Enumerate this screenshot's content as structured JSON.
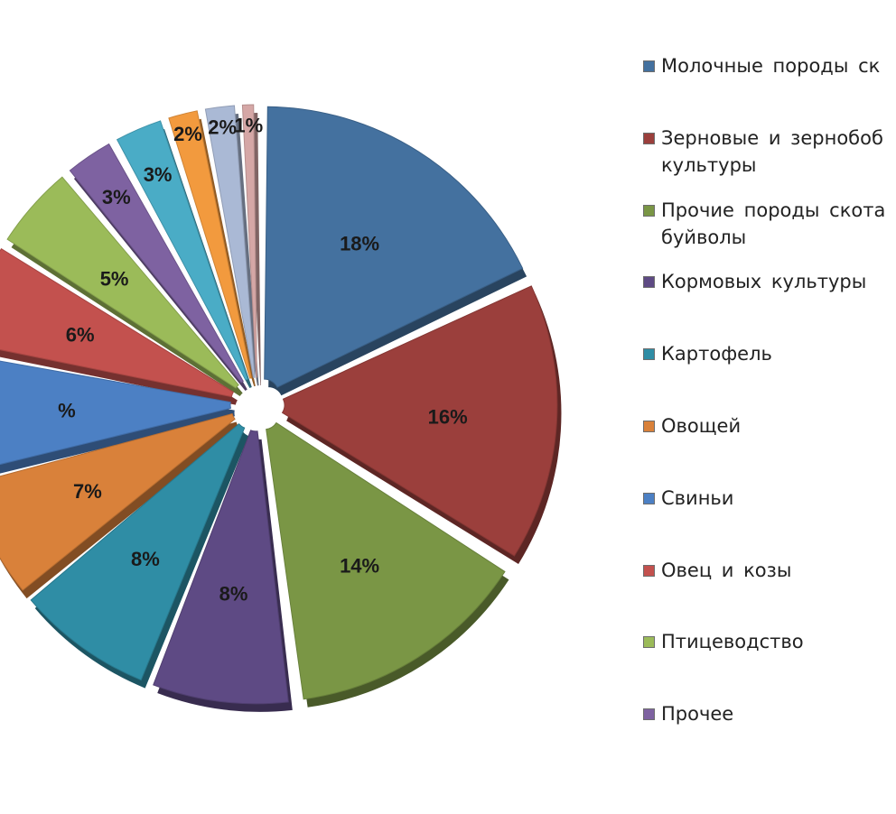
{
  "chart_data": {
    "type": "pie",
    "title": "",
    "slices": [
      {
        "value": 18,
        "label": "18%",
        "legend": "Молочные породы ск",
        "color": "#44719f"
      },
      {
        "value": 16,
        "label": "16%",
        "legend": "Зерновые и зернобоб\nкультуры",
        "color": "#9b3f3c"
      },
      {
        "value": 14,
        "label": "14%",
        "legend": "Прочие породы скота\nбуйволы",
        "color": "#7a9645"
      },
      {
        "value": 8,
        "label": "8%",
        "legend": "Кормовых культуры",
        "color": "#5e4a84"
      },
      {
        "value": 8,
        "label": "8%",
        "legend": "Картофель",
        "color": "#2f8da5"
      },
      {
        "value": 7,
        "label": "7%",
        "legend": "Овощей",
        "color": "#d9813a"
      },
      {
        "value": 7,
        "label": "%",
        "legend": "Свиньи",
        "color": "#4c80c4"
      },
      {
        "value": 6,
        "label": "6%",
        "legend": "Овец и козы",
        "color": "#c3514e"
      },
      {
        "value": 5,
        "label": "5%",
        "legend": "Птицеводство",
        "color": "#9bbb59"
      },
      {
        "value": 3,
        "label": "3%",
        "legend": "Прочее",
        "color": "#7e62a1"
      },
      {
        "value": 3,
        "label": "3%",
        "legend": "",
        "color": "#4aacc6"
      },
      {
        "value": 2,
        "label": "2%",
        "legend": "",
        "color": "#f29a3e"
      },
      {
        "value": 2,
        "label": "2%",
        "legend": "",
        "color": "#aab9d5"
      },
      {
        "value": 1,
        "label": "1%",
        "legend": "",
        "color": "#d5a7a6"
      }
    ],
    "legend_position": "right"
  }
}
